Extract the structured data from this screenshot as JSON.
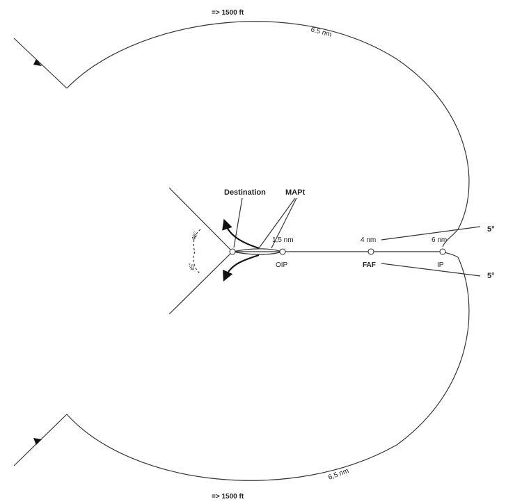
{
  "labels": {
    "top_altitude": "=> 1500 ft",
    "bottom_altitude": "=> 1500 ft",
    "top_arc_distance": "6.5 nm",
    "bottom_arc_distance": "6,5 nm",
    "destination": "Destination",
    "mapt": "MAPt",
    "dist_1_5": "1,5 nm",
    "dist_4": "4 nm",
    "dist_6": "6 nm",
    "oip": "OIP",
    "faf": "FAF",
    "ip": "IP",
    "angle_top": "5°",
    "angle_bottom": "5°",
    "angle_arc_upper": "45°",
    "angle_arc_lower": "45°"
  },
  "colors": {
    "line": "#333333",
    "text": "#222222"
  }
}
